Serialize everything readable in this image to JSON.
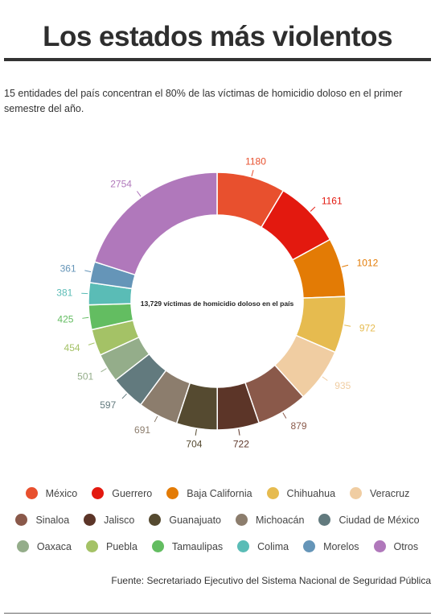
{
  "header": {
    "title": "Los estados más violentos",
    "subtitle": "15 entidades del país concentran el 80% de las víctimas de homicidio doloso en el primer semestre del año."
  },
  "chart_data": {
    "type": "pie",
    "donut": true,
    "center_label": "13,729 víctimas de homicidio doloso en el país",
    "legend_position": "bottom",
    "categories": [
      "México",
      "Guerrero",
      "Baja California",
      "Chihuahua",
      "Veracruz",
      "Sinaloa",
      "Jalisco",
      "Guanajuato",
      "Michoacán",
      "Ciudad de México",
      "Oaxaca",
      "Puebla",
      "Tamaulipas",
      "Colima",
      "Morelos",
      "Otros"
    ],
    "values": [
      1180,
      1161,
      1012,
      972,
      935,
      879,
      722,
      704,
      691,
      597,
      501,
      454,
      425,
      381,
      361,
      2754
    ],
    "colors": [
      "#e8502e",
      "#e3190f",
      "#e37b05",
      "#e6bb4f",
      "#f0cda2",
      "#8a594a",
      "#5c3528",
      "#554a30",
      "#8c7d6d",
      "#627a7e",
      "#94ad8a",
      "#a4c266",
      "#63bd61",
      "#5abcb6",
      "#6595b8",
      "#b078bb"
    ]
  },
  "source": "Fuente: Secretariado Ejecutivo del Sistema Nacional de Seguridad Pública"
}
